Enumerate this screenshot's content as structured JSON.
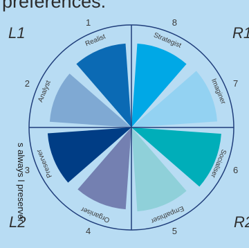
{
  "heading": "preferences.",
  "quadrants": {
    "top_left": "L1",
    "top_right": "R1",
    "bottom_left": "L2",
    "bottom_right": "R2"
  },
  "segments": [
    {
      "number": "2",
      "role": "Analyst",
      "color": "#7fa9d3",
      "level": 0.8
    },
    {
      "number": "1",
      "role": "Realist",
      "color": "#0b6ab4",
      "level": 0.82
    },
    {
      "number": "8",
      "role": "Strategist",
      "color": "#00a8e6",
      "level": 0.82
    },
    {
      "number": "7",
      "role": "Imaginer",
      "color": "#93d2f2",
      "level": 0.84
    },
    {
      "number": "6",
      "role": "Socialiser",
      "color": "#00aeb9",
      "level": 0.88
    },
    {
      "number": "5",
      "role": "Empathiser",
      "color": "#8fd0d9",
      "level": 0.82
    },
    {
      "number": "4",
      "role": "Organiser",
      "color": "#7480b1",
      "level": 0.8
    },
    {
      "number": "3",
      "role": "Preserver",
      "color": "#003d85",
      "level": 0.82
    }
  ],
  "side_text": "s always l preserver"
}
